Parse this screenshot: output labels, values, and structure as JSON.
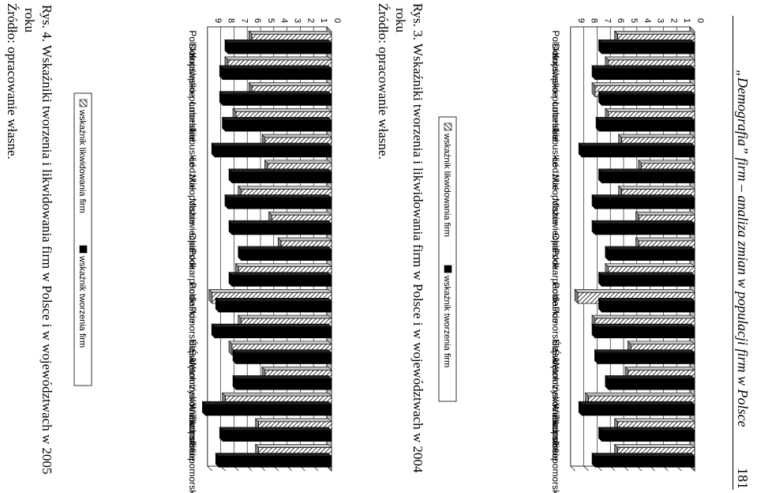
{
  "header": {
    "title": "„Demografia” firm – analiza zmian w populacji firm w Polsce",
    "page_number": "181"
  },
  "figures": [
    {
      "caption_line1": "Rys. 3. Wskaźniki tworzenia i likwidowania firm w Polsce i w województwach w 2004",
      "caption_line2": "roku",
      "source": "Źródło: opracowanie własne."
    },
    {
      "caption_line1": "Rys. 4. Wskaźniki tworzenia i likwidowania firm w Polsce i w województwach w 2005",
      "caption_line2": "roku",
      "source": "Źródło: opracowanie własne."
    }
  ],
  "chart_data": [
    {
      "type": "bar",
      "categories": [
        "Polska",
        "Dolnośląskie",
        "Kujawsko-pomorskie",
        "Lubelskie",
        "Lubuskie",
        "Łódzkie",
        "Małopolskie",
        "Mazowieckie",
        "Opolskie",
        "Podkarpackie",
        "Podlaskie",
        "Pomorskie",
        "Śląskie",
        "Świętokrzyskie",
        "Warmińsko-mazurskie",
        "Wielkopolskie",
        "Zachodniopomorskie"
      ],
      "series": [
        {
          "name": "wskaźnik likwidowania firm",
          "pattern": "hatched",
          "values": [
            5.8,
            6.5,
            7.5,
            6.5,
            5.5,
            4.0,
            5.5,
            4.2,
            4.2,
            6.5,
            8.8,
            7.5,
            4.8,
            5.0,
            8.0,
            5.8,
            5.8
          ]
        },
        {
          "name": "wskaźnik tworzenia firm",
          "color": "#000000",
          "values": [
            7.0,
            7.5,
            7.0,
            7.2,
            8.5,
            7.0,
            7.5,
            7.5,
            6.5,
            7.0,
            7.0,
            7.5,
            7.3,
            6.5,
            8.5,
            7.0,
            7.5
          ]
        }
      ],
      "ylim": [
        0,
        9
      ],
      "yticks": [
        "0",
        "1",
        "2",
        "3",
        "4",
        "5",
        "6",
        "7",
        "8",
        "9"
      ],
      "grid": true,
      "legend_position": "bottom",
      "orientation": "rotated page"
    },
    {
      "type": "bar",
      "categories": [
        "Polska",
        "Dolnośląskie",
        "Kujawsko-pomorskie",
        "Lubelskie",
        "Lubuskie",
        "Łódzkie",
        "Małopolskie",
        "Mazowieckie",
        "Opolskie",
        "Podkarpackie",
        "Podlaskie",
        "Pomorskie",
        "Śląskie",
        "Świętokrzyskie",
        "Warmińsko-mazurskie",
        "Wielkopolskie",
        "Zachodniopomorskie"
      ],
      "series": [
        {
          "name": "wskaźnik likwidowania firm",
          "pattern": "hatched",
          "values": [
            6.0,
            7.8,
            6.0,
            7.2,
            5.0,
            4.8,
            6.8,
            4.5,
            3.8,
            7.0,
            9.0,
            6.8,
            7.5,
            5.0,
            8.0,
            5.5,
            5.5
          ]
        },
        {
          "name": "wskaźnik tworzenia firm",
          "color": "#000000",
          "values": [
            7.8,
            8.2,
            8.2,
            8.0,
            8.8,
            7.5,
            7.8,
            7.5,
            6.8,
            7.5,
            8.5,
            8.8,
            7.2,
            7.2,
            9.5,
            8.2,
            8.5
          ]
        }
      ],
      "ylim": [
        0,
        9
      ],
      "yticks": [
        "0",
        "1",
        "2",
        "3",
        "4",
        "5",
        "6",
        "7",
        "8",
        "9"
      ],
      "grid": true,
      "legend_position": "bottom",
      "orientation": "rotated page"
    }
  ]
}
